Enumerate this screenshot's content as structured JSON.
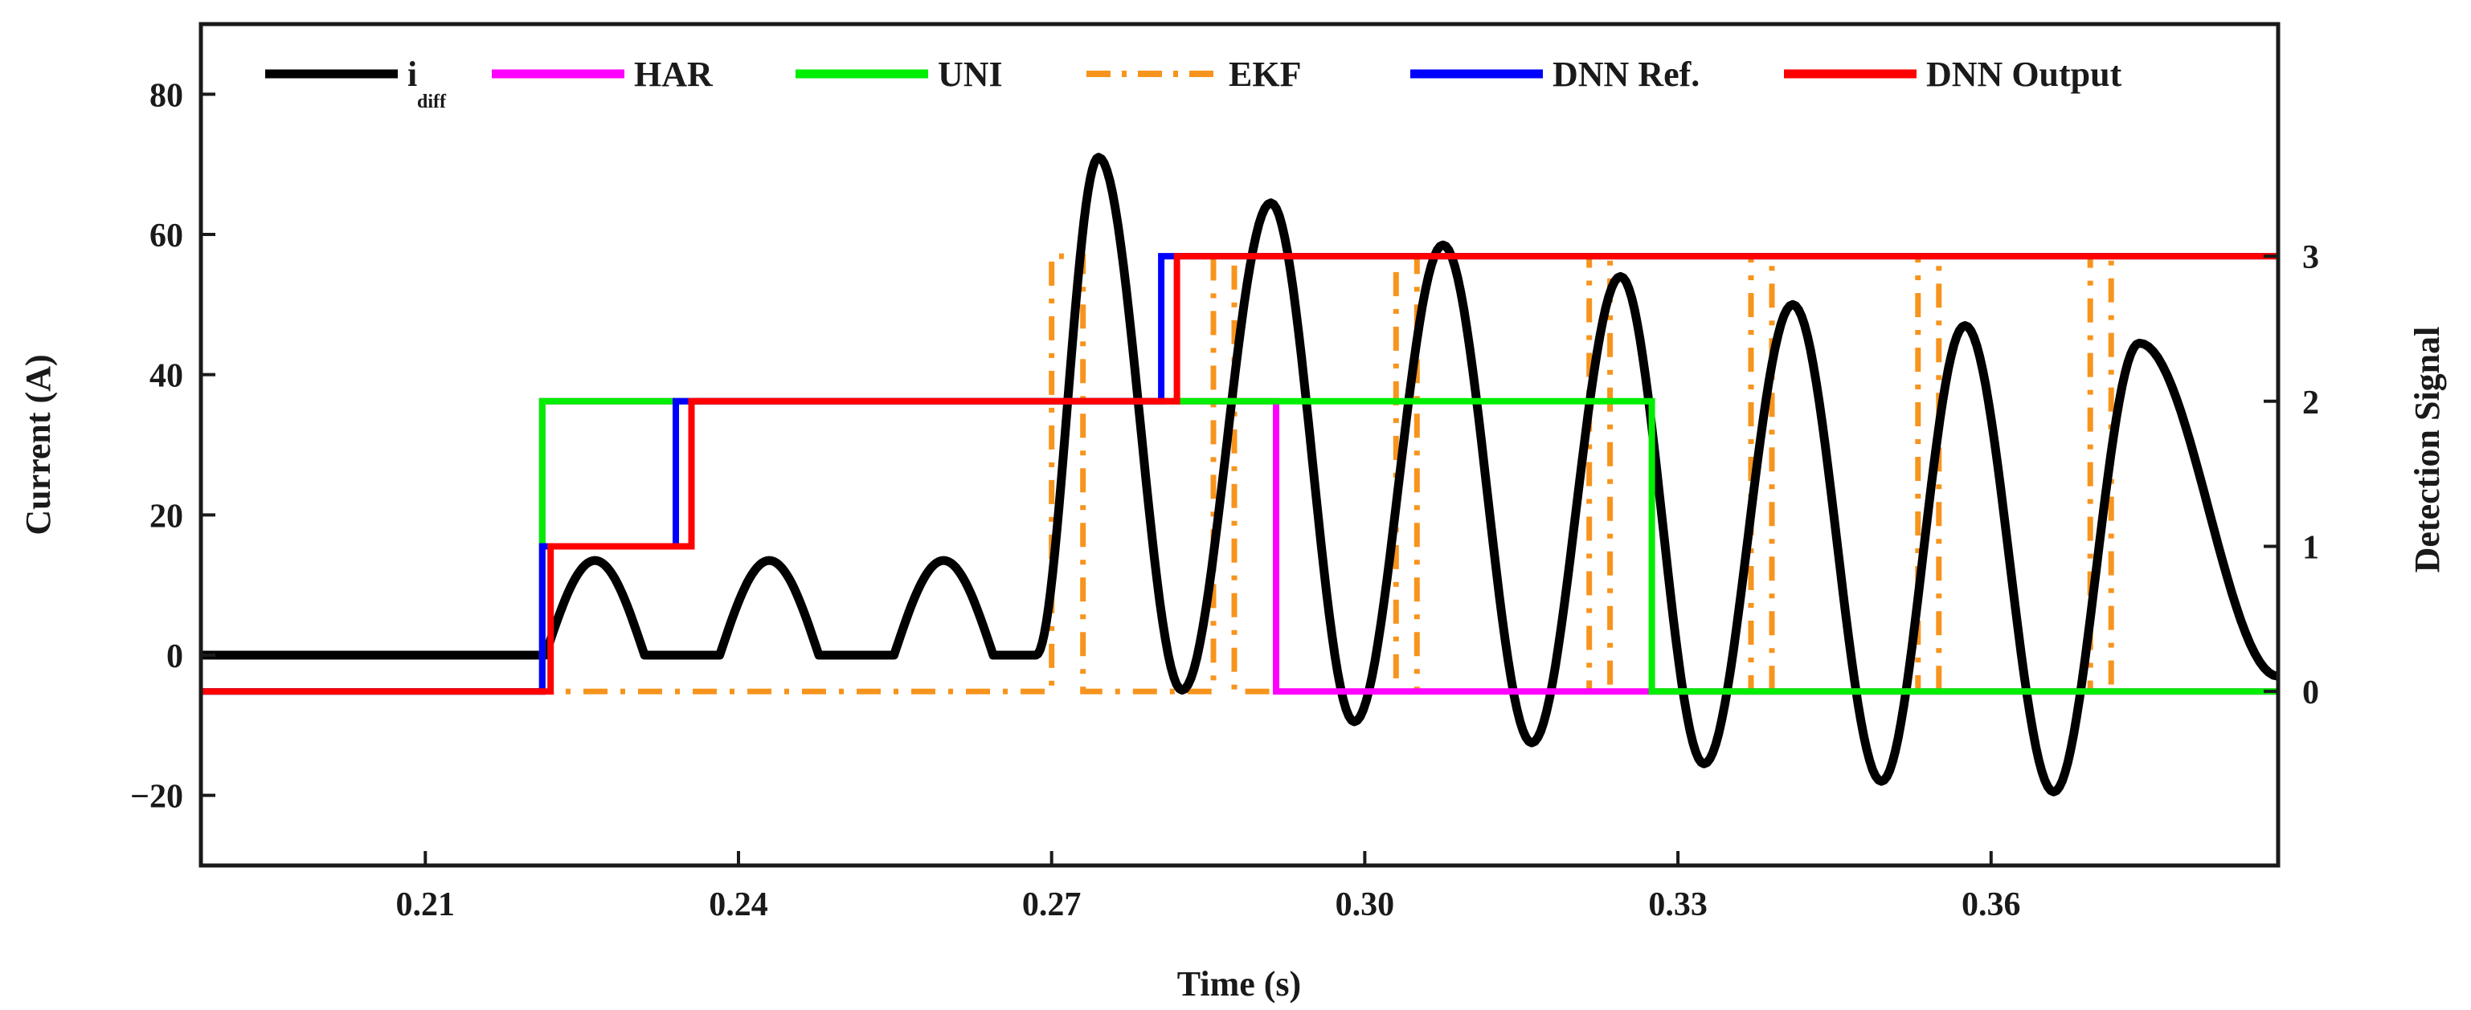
{
  "chart_data": {
    "type": "line",
    "title": "",
    "xlabel": "Time (s)",
    "ylabel": "Current (A)",
    "y2label": "Detection Signal",
    "xlim": [
      0.1885,
      0.3875
    ],
    "ylim": [
      -30,
      90
    ],
    "y2lim": [
      -1.2,
      4.6
    ],
    "xticks": [
      0.21,
      0.24,
      0.27,
      0.3,
      0.33,
      0.36
    ],
    "xtick_labels": [
      "0.21",
      "0.24",
      "0.27",
      "0.30",
      "0.33",
      "0.36"
    ],
    "yticks": [
      80,
      60,
      40,
      20,
      0,
      -20
    ],
    "ytick_labels": [
      "80",
      "60",
      "40",
      "20",
      "0",
      "−20"
    ],
    "y2ticks": [
      0,
      1,
      2,
      3
    ],
    "y2tick_labels": [
      "0",
      "1",
      "2",
      "3"
    ],
    "legend": {
      "placement": "top",
      "entries": [
        {
          "id": "idiff",
          "label": "i",
          "sub": "diff",
          "style": "solid"
        },
        {
          "id": "har",
          "label": "HAR",
          "style": "solid"
        },
        {
          "id": "uni",
          "label": "UNI",
          "style": "solid"
        },
        {
          "id": "ekf",
          "label": "EKF",
          "style": "dashdot"
        },
        {
          "id": "dnnref",
          "label": "DNN Ref.",
          "style": "solid"
        },
        {
          "id": "dnnout",
          "label": "DNN Output",
          "style": "solid"
        }
      ]
    },
    "series": [
      {
        "name": "i_diff",
        "id": "idiff",
        "axis": "left",
        "color": "#000000",
        "style": "solid",
        "segments": [
          {
            "type": "flat",
            "x0": 0.1885,
            "x1": 0.2215,
            "y": 0
          },
          {
            "type": "humps",
            "x0": 0.2215,
            "x1": 0.2685,
            "period": 0.0167,
            "width": 0.0095,
            "amplitude": 13.5
          },
          {
            "type": "sine",
            "x0": 0.2685,
            "x1": 0.3875,
            "period": 0.01665,
            "phase_x": 0.2685,
            "peaks": [
              [
                0.2745,
                71
              ],
              [
                0.291,
                64.5
              ],
              [
                0.3075,
                58.5
              ],
              [
                0.3245,
                54
              ],
              [
                0.341,
                50
              ],
              [
                0.3575,
                47
              ],
              [
                0.3742,
                44.5
              ]
            ],
            "troughs": [
              [
                0.2685,
                0
              ],
              [
                0.2825,
                -5
              ],
              [
                0.299,
                -9.5
              ],
              [
                0.316,
                -12.5
              ],
              [
                0.3325,
                -15.5
              ],
              [
                0.3495,
                -18
              ],
              [
                0.366,
                -19.5
              ],
              [
                0.3875,
                -3
              ]
            ]
          }
        ]
      },
      {
        "name": "HAR",
        "id": "har",
        "axis": "right",
        "color": "#ff00ff",
        "style": "solid",
        "x": [
          0.1885,
          0.2212,
          0.2212,
          0.2915,
          0.2915,
          0.3875
        ],
        "y": [
          0,
          0,
          2,
          2,
          0,
          0
        ]
      },
      {
        "name": "UNI",
        "id": "uni",
        "axis": "right",
        "color": "#00ee00",
        "style": "solid",
        "x": [
          0.1885,
          0.2212,
          0.2212,
          0.3275,
          0.3275,
          0.3875
        ],
        "y": [
          0,
          0,
          2,
          2,
          0,
          0
        ]
      },
      {
        "name": "EKF",
        "id": "ekf",
        "axis": "right",
        "color": "#f7941d",
        "style": "dashdot",
        "pulses": [
          [
            0.27,
            0.273
          ],
          [
            0.2855,
            0.2875
          ],
          [
            0.303,
            0.305
          ],
          [
            0.3215,
            0.3235
          ],
          [
            0.337,
            0.339
          ],
          [
            0.353,
            0.355
          ],
          [
            0.3695,
            0.3715
          ]
        ],
        "pulse_height": 3
      },
      {
        "name": "DNN Ref.",
        "id": "dnnref",
        "axis": "right",
        "color": "#0000ff",
        "style": "solid",
        "x": [
          0.1885,
          0.2212,
          0.2212,
          0.234,
          0.234,
          0.2805,
          0.2805,
          0.3875
        ],
        "y": [
          0,
          0,
          1,
          1,
          2,
          2,
          3,
          3
        ]
      },
      {
        "name": "DNN Output",
        "id": "dnnout",
        "axis": "right",
        "color": "#ff0000",
        "style": "solid",
        "x": [
          0.1885,
          0.222,
          0.222,
          0.2355,
          0.2355,
          0.282,
          0.282,
          0.3875
        ],
        "y": [
          0,
          0,
          1,
          1,
          2,
          2,
          3,
          3
        ]
      }
    ]
  }
}
